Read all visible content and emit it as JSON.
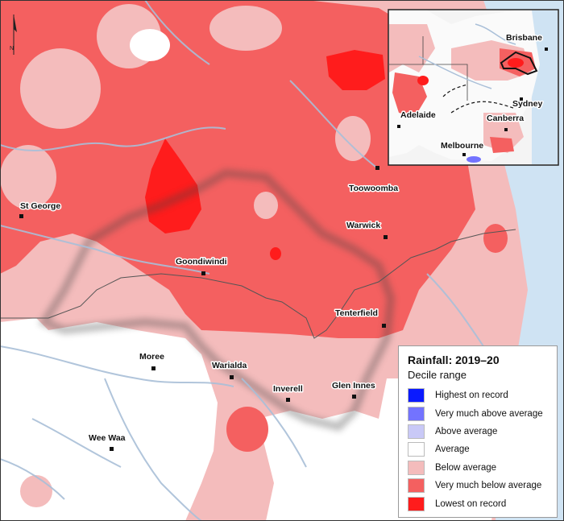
{
  "north_arrow": {
    "label": "N"
  },
  "towns": [
    {
      "name": "St George"
    },
    {
      "name": "Goondiwindi"
    },
    {
      "name": "Toowoomba"
    },
    {
      "name": "Warwick"
    },
    {
      "name": "Tenterfield"
    },
    {
      "name": "Moree"
    },
    {
      "name": "Warialda"
    },
    {
      "name": "Inverell"
    },
    {
      "name": "Glen Innes"
    },
    {
      "name": "Wee Waa"
    }
  ],
  "inset": {
    "cities": [
      {
        "name": "Brisbane"
      },
      {
        "name": "Sydney"
      },
      {
        "name": "Canberra"
      },
      {
        "name": "Adelaide"
      },
      {
        "name": "Melbourne"
      }
    ]
  },
  "legend": {
    "title": "Rainfall: 2019–20",
    "subtitle": "Decile range",
    "items": [
      {
        "label": "Highest on record",
        "color": "#0a1aff"
      },
      {
        "label": "Very much above average",
        "color": "#7373ff"
      },
      {
        "label": "Above average",
        "color": "#c9c9f7"
      },
      {
        "label": "Average",
        "color": "#ffffff"
      },
      {
        "label": "Below average",
        "color": "#f4bcbc"
      },
      {
        "label": "Very much below average",
        "color": "#f46060"
      },
      {
        "label": "Lowest on record",
        "color": "#ff1c1c"
      }
    ]
  }
}
